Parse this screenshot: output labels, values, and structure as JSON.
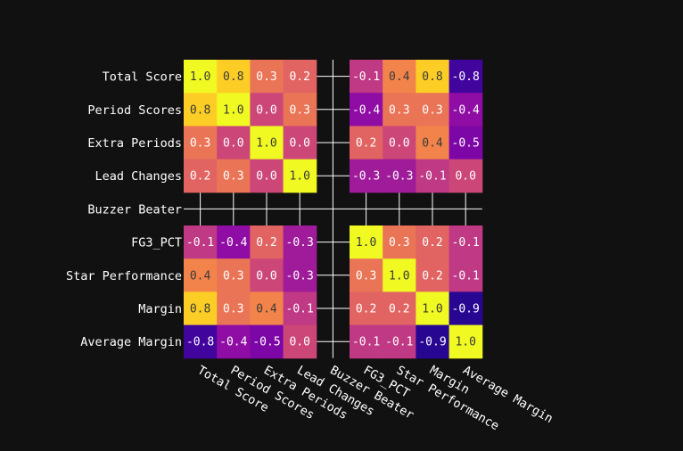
{
  "chart_data": {
    "type": "heatmap",
    "title": "",
    "xlabel": "",
    "ylabel": "",
    "colormap": "plasma",
    "vmin": -1,
    "vmax": 1,
    "background_color": "#111111",
    "grid": true,
    "labels": [
      "Total Score",
      "Period Scores",
      "Extra Periods",
      "Lead Changes",
      "Buzzer Beater",
      "FG3_PCT",
      "Star Performance",
      "Margin",
      "Average Margin"
    ],
    "values": [
      [
        1.0,
        0.8,
        0.3,
        0.2,
        null,
        -0.1,
        0.4,
        0.8,
        -0.8
      ],
      [
        0.8,
        1.0,
        0.0,
        0.3,
        null,
        -0.4,
        0.3,
        0.3,
        -0.4
      ],
      [
        0.3,
        0.0,
        1.0,
        0.0,
        null,
        0.2,
        0.0,
        0.4,
        -0.5
      ],
      [
        0.2,
        0.3,
        0.0,
        1.0,
        null,
        -0.3,
        -0.3,
        -0.1,
        0.0
      ],
      [
        null,
        null,
        null,
        null,
        null,
        null,
        null,
        null,
        null
      ],
      [
        -0.1,
        -0.4,
        0.2,
        -0.3,
        null,
        1.0,
        0.3,
        0.2,
        -0.1
      ],
      [
        0.4,
        0.3,
        0.0,
        -0.3,
        null,
        0.3,
        1.0,
        0.2,
        -0.1
      ],
      [
        0.8,
        0.3,
        0.4,
        -0.1,
        null,
        0.2,
        0.2,
        1.0,
        -0.9
      ],
      [
        -0.8,
        -0.4,
        -0.5,
        0.0,
        null,
        -0.1,
        -0.1,
        -0.9,
        1.0
      ]
    ]
  }
}
